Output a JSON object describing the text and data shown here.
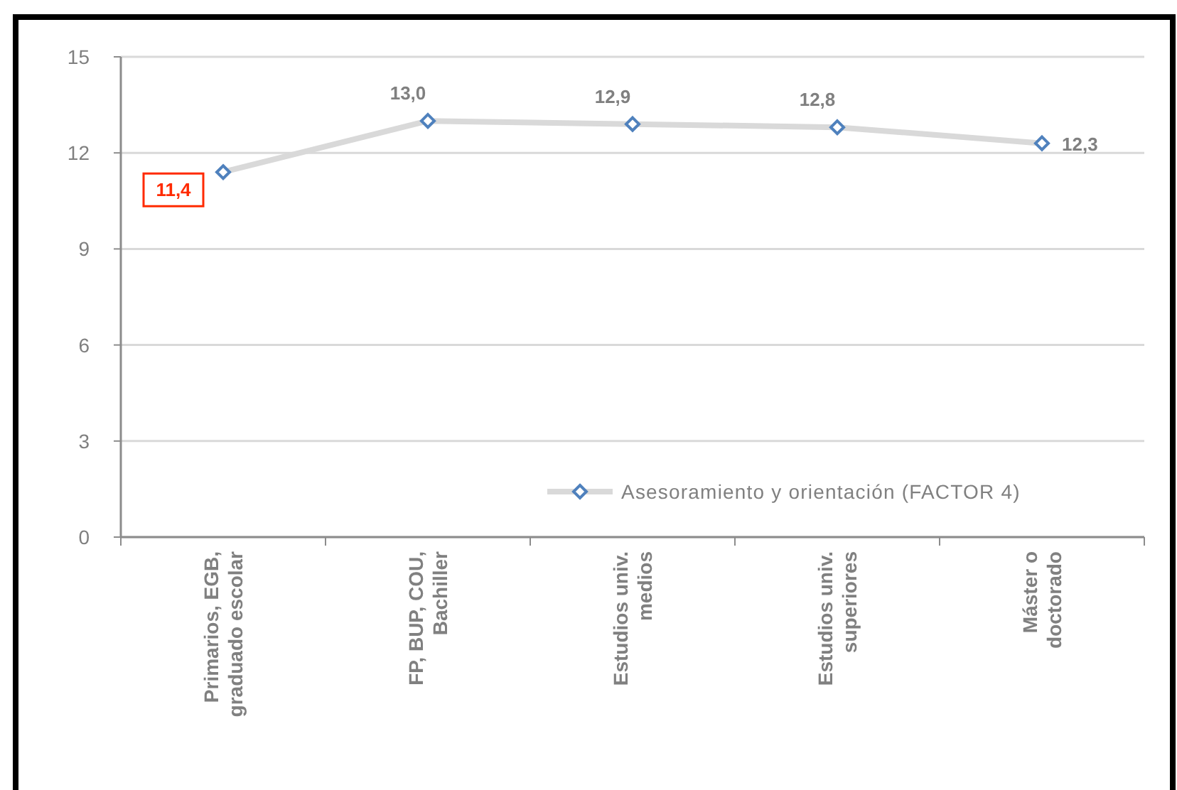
{
  "chart_data": {
    "type": "line",
    "categories": [
      "Primarios, EGB, graduado escolar",
      "FP, BUP, COU, Bachiller",
      "Estudios univ. medios",
      "Estudios univ. superiores",
      "Máster o doctorado"
    ],
    "series": [
      {
        "name": "Asesoramiento y orientación (FACTOR 4)",
        "color": "#d9d9d9",
        "values": [
          11.4,
          13.0,
          12.9,
          12.8,
          12.3
        ],
        "value_labels": [
          "11,4",
          "13,0",
          "12,9",
          "12,8",
          "12,3"
        ]
      }
    ],
    "ylim": [
      0,
      15
    ],
    "yticks": [
      0,
      3,
      6,
      9,
      12,
      15
    ],
    "grid": "y",
    "legend": "bottom right",
    "marker": "diamond",
    "line_style": "solid"
  }
}
